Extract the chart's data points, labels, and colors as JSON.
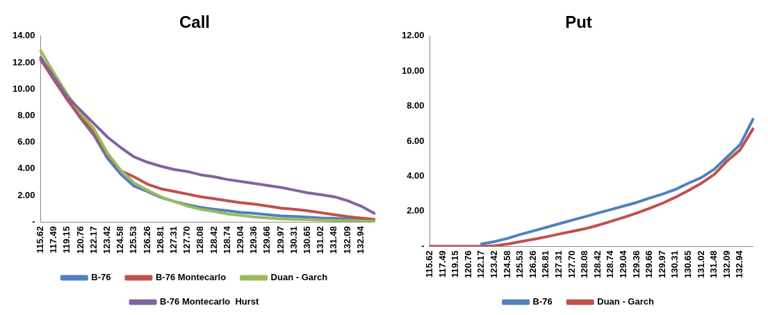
{
  "chart_data": [
    {
      "type": "line",
      "title": "Call",
      "legend": "bottom",
      "grid": false,
      "marker": "none",
      "line_style": "solid",
      "categories": [
        "115.62",
        "117.49",
        "119.15",
        "120.76",
        "122.17",
        "123.42",
        "124.58",
        "125.53",
        "126.26",
        "126.81",
        "127.31",
        "127.70",
        "128.08",
        "128.42",
        "128.74",
        "129.04",
        "129.36",
        "129.66",
        "129.97",
        "130.31",
        "130.65",
        "131.02",
        "131.48",
        "132.09",
        "132.94",
        null
      ],
      "ylim": [
        0,
        14
      ],
      "yticks": [
        {
          "value": 0,
          "label": "-"
        },
        {
          "value": 2,
          "label": "2.00"
        },
        {
          "value": 4,
          "label": "4.00"
        },
        {
          "value": 6,
          "label": "6.00"
        },
        {
          "value": 8,
          "label": "8.00"
        },
        {
          "value": 10,
          "label": "10.00"
        },
        {
          "value": 12,
          "label": "12.00"
        },
        {
          "value": 14,
          "label": "14.00"
        }
      ],
      "series": [
        {
          "name": "B-76",
          "color": "#4f81bd",
          "values": [
            12.3,
            10.7,
            9.2,
            7.8,
            6.5,
            4.8,
            3.6,
            2.7,
            2.3,
            1.85,
            1.55,
            1.3,
            1.1,
            0.95,
            0.85,
            0.72,
            0.65,
            0.55,
            0.46,
            0.42,
            0.37,
            0.3,
            0.27,
            0.22,
            0.16,
            0.1
          ]
        },
        {
          "name": "B-76 Montecarlo",
          "color": "#c0504d",
          "values": [
            12.2,
            10.7,
            9.2,
            7.9,
            6.7,
            5.1,
            3.85,
            3.4,
            2.85,
            2.5,
            2.3,
            2.1,
            1.9,
            1.75,
            1.6,
            1.45,
            1.35,
            1.2,
            1.05,
            0.95,
            0.85,
            0.7,
            0.55,
            0.4,
            0.3,
            0.2
          ]
        },
        {
          "name": "Duan - Garch",
          "color": "#9bbb59",
          "values": [
            12.9,
            11.2,
            9.6,
            8.2,
            7.0,
            5.2,
            3.9,
            2.95,
            2.4,
            1.9,
            1.55,
            1.2,
            0.95,
            0.8,
            0.6,
            0.5,
            0.38,
            0.3,
            0.24,
            0.2,
            0.18,
            0.14,
            0.12,
            0.1,
            0.08,
            0.05
          ]
        },
        {
          "name": "B-76 Montecarlo  Hurst",
          "color": "#8064a2",
          "values": [
            12.4,
            10.9,
            9.4,
            8.4,
            7.4,
            6.4,
            5.6,
            4.9,
            4.5,
            4.2,
            3.95,
            3.8,
            3.55,
            3.4,
            3.2,
            3.05,
            2.9,
            2.75,
            2.6,
            2.4,
            2.2,
            2.05,
            1.9,
            1.6,
            1.2,
            0.65
          ]
        }
      ]
    },
    {
      "type": "line",
      "title": "Put",
      "legend": "bottom",
      "grid": false,
      "marker": "none",
      "line_style": "solid",
      "categories": [
        "115.62",
        "117.49",
        "119.15",
        "120.76",
        "122.17",
        "123.42",
        "124.58",
        "125.53",
        "126.26",
        "126.81",
        "127.31",
        "127.70",
        "128.08",
        "128.42",
        "128.74",
        "129.04",
        "129.36",
        "129.66",
        "129.97",
        "130.31",
        "130.65",
        "131.02",
        "131.48",
        "132.09",
        "132.94",
        null
      ],
      "ylim": [
        0,
        12
      ],
      "yticks": [
        {
          "value": 0,
          "label": "-"
        },
        {
          "value": 2,
          "label": "2.00"
        },
        {
          "value": 4,
          "label": "4.00"
        },
        {
          "value": 6,
          "label": "6.00"
        },
        {
          "value": 8,
          "label": "8.00"
        },
        {
          "value": 10,
          "label": "10.00"
        },
        {
          "value": 12,
          "label": "12.00"
        }
      ],
      "series": [
        {
          "name": "B-76",
          "color": "#4f81bd",
          "values": [
            null,
            null,
            null,
            null,
            0.14,
            0.27,
            0.45,
            0.68,
            0.88,
            1.08,
            1.29,
            1.49,
            1.69,
            1.9,
            2.1,
            2.3,
            2.5,
            2.75,
            2.98,
            3.25,
            3.6,
            3.92,
            4.4,
            5.1,
            5.8,
            7.25
          ]
        },
        {
          "name": "Duan - Garch",
          "color": "#c0504d",
          "values": [
            0,
            0,
            0,
            0,
            0,
            0.03,
            0.13,
            0.27,
            0.4,
            0.54,
            0.7,
            0.85,
            1.0,
            1.2,
            1.42,
            1.65,
            1.9,
            2.17,
            2.46,
            2.8,
            3.18,
            3.6,
            4.1,
            4.87,
            5.5,
            6.7
          ]
        }
      ]
    }
  ]
}
